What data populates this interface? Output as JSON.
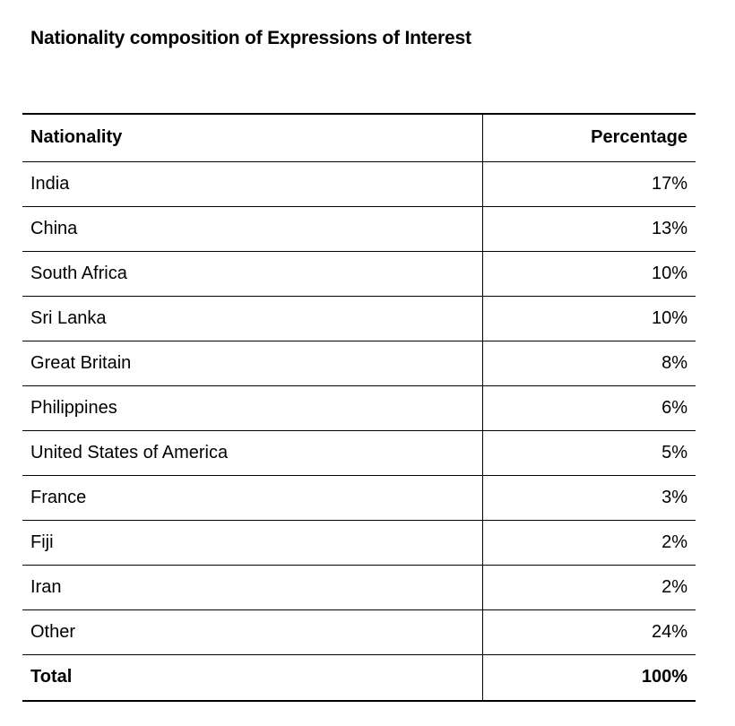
{
  "title": "Nationality composition of Expressions of Interest",
  "table": {
    "headers": {
      "nationality": "Nationality",
      "percentage": "Percentage"
    },
    "rows": [
      {
        "nationality": "India",
        "percentage": "17%"
      },
      {
        "nationality": "China",
        "percentage": "13%"
      },
      {
        "nationality": "South Africa",
        "percentage": "10%"
      },
      {
        "nationality": "Sri Lanka",
        "percentage": "10%"
      },
      {
        "nationality": "Great Britain",
        "percentage": "8%"
      },
      {
        "nationality": "Philippines",
        "percentage": "6%"
      },
      {
        "nationality": "United States of America",
        "percentage": "5%"
      },
      {
        "nationality": "France",
        "percentage": "3%"
      },
      {
        "nationality": "Fiji",
        "percentage": "2%"
      },
      {
        "nationality": "Iran",
        "percentage": "2%"
      },
      {
        "nationality": "Other",
        "percentage": "24%"
      }
    ],
    "total": {
      "nationality": "Total",
      "percentage": "100%"
    }
  }
}
